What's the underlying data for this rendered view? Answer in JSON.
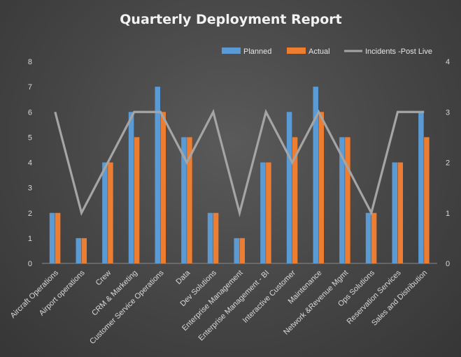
{
  "chart_data": {
    "type": "bar",
    "title": "Quarterly Deployment Report",
    "categories": [
      "Aircraft Operations",
      "Airport operations",
      "Crew",
      "CRM & Marketing",
      "Customer Service Operations",
      "Data",
      "Dev Solutions",
      "Enterprise Management",
      "Enterprise Management - BI",
      "Interactive Customer",
      "Maintenance",
      "Network &Revenue Mgmt",
      "Ops Solutions",
      "Reservation Services",
      "Sales and Distribution"
    ],
    "series": [
      {
        "name": "Planned",
        "type": "bar",
        "axis": "left",
        "color": "#5b9bd5",
        "values": [
          2,
          1,
          4,
          6,
          7,
          5,
          2,
          1,
          4,
          6,
          7,
          5,
          2,
          4,
          6
        ]
      },
      {
        "name": "Actual",
        "type": "bar",
        "axis": "left",
        "color": "#ed7d31",
        "values": [
          2,
          1,
          4,
          5,
          6,
          5,
          2,
          1,
          4,
          5,
          6,
          5,
          2,
          4,
          5
        ]
      },
      {
        "name": "Incidents -Post Live",
        "type": "line",
        "axis": "right",
        "color": "#a5a5a5",
        "values": [
          3,
          1,
          2,
          3,
          3,
          2,
          3,
          1,
          3,
          2,
          3,
          2,
          1,
          3,
          3
        ]
      }
    ],
    "ylim": [
      0,
      8
    ],
    "y_ticks": [
      0,
      1,
      2,
      3,
      4,
      5,
      6,
      7,
      8
    ],
    "y2lim": [
      0,
      4
    ],
    "y2_ticks": [
      0,
      1,
      2,
      3,
      4
    ],
    "legend": "top-right",
    "grid": false
  }
}
